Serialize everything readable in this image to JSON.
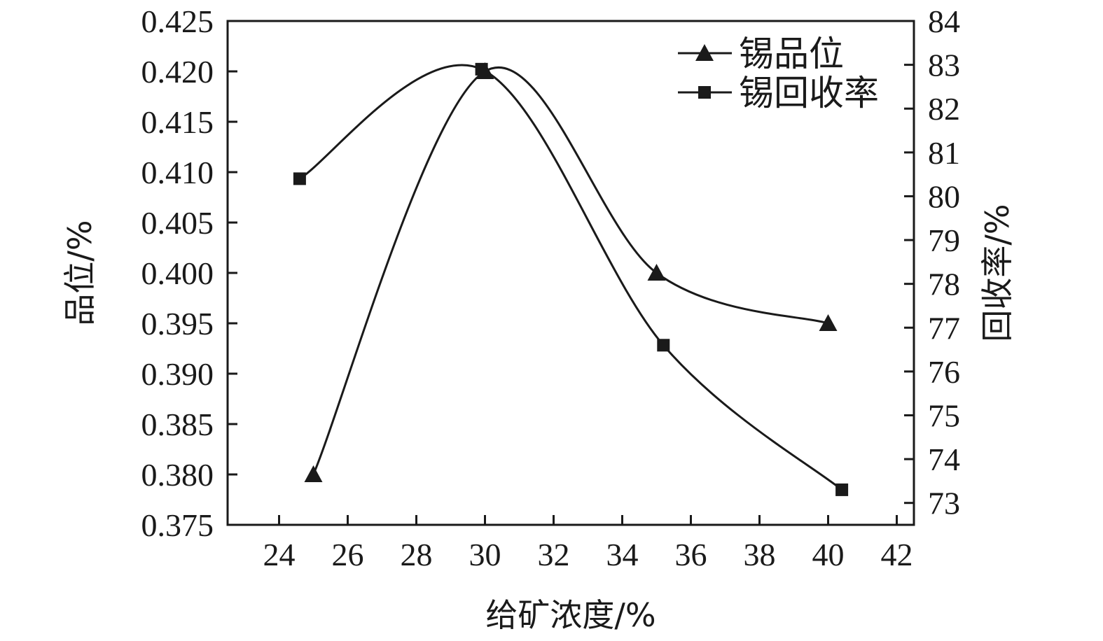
{
  "chart_data": {
    "type": "line",
    "xlabel": "给矿浓度/%",
    "ylabel_left": "品位/%",
    "ylabel_right": "回收率/%",
    "x_ticks": [
      "24",
      "26",
      "28",
      "30",
      "32",
      "34",
      "36",
      "38",
      "40",
      "42"
    ],
    "xlim": [
      22.5,
      42.5
    ],
    "y_left_ticks": [
      "0.375",
      "0.380",
      "0.385",
      "0.390",
      "0.395",
      "0.400",
      "0.405",
      "0.410",
      "0.415",
      "0.420",
      "0.425"
    ],
    "y_left_lim": [
      0.375,
      0.425
    ],
    "y_right_ticks": [
      "73",
      "74",
      "75",
      "76",
      "77",
      "78",
      "79",
      "80",
      "81",
      "82",
      "83",
      "84"
    ],
    "y_right_lim": [
      72.5,
      84
    ],
    "grid": false,
    "legend_position": "top-right",
    "series": [
      {
        "name": "锡品位",
        "axis": "left",
        "marker": "triangle",
        "x": [
          25,
          30,
          35,
          40
        ],
        "y": [
          0.38,
          0.42,
          0.4,
          0.395
        ]
      },
      {
        "name": "锡回收率",
        "axis": "right",
        "marker": "square",
        "x": [
          24.6,
          29.9,
          35.2,
          40.4
        ],
        "y": [
          80.4,
          82.9,
          76.6,
          73.3
        ]
      }
    ]
  }
}
